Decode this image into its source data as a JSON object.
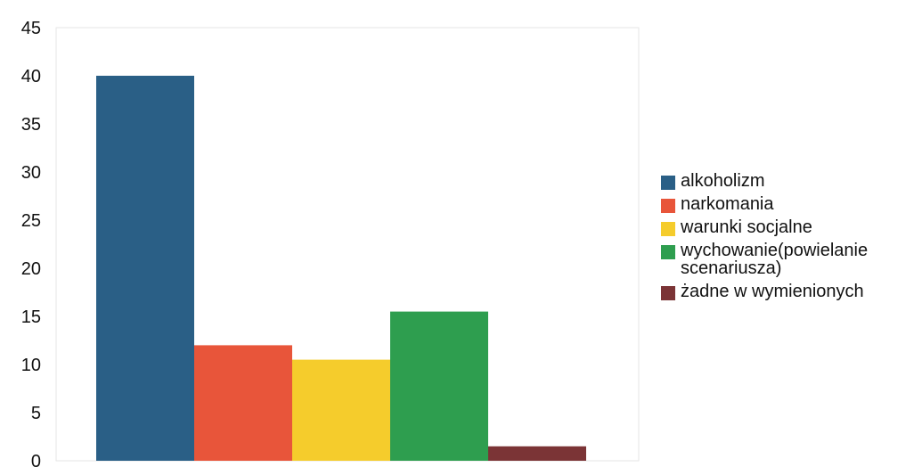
{
  "chart_data": {
    "type": "bar",
    "categories": [
      "alkoholizm",
      "narkomania",
      "warunki socjalne",
      "wychowanie(powielanie scenariusza)",
      "żadne w wymienionych"
    ],
    "values": [
      40,
      12,
      10.5,
      15.5,
      1.5
    ],
    "colors": [
      "#2a5f86",
      "#e8553a",
      "#f5cc2c",
      "#2e9e4f",
      "#7b3436"
    ],
    "ylim": [
      0,
      45
    ],
    "yticks": [
      "0",
      "5",
      "10",
      "15",
      "20",
      "25",
      "30",
      "35",
      "40",
      "45"
    ],
    "legend": {
      "position": "right",
      "items": [
        "alkoholizm",
        "narkomania",
        "warunki socjalne",
        "wychowanie(powielanie scenariusza)",
        "żadne w wymienionych"
      ]
    },
    "grid": false
  }
}
